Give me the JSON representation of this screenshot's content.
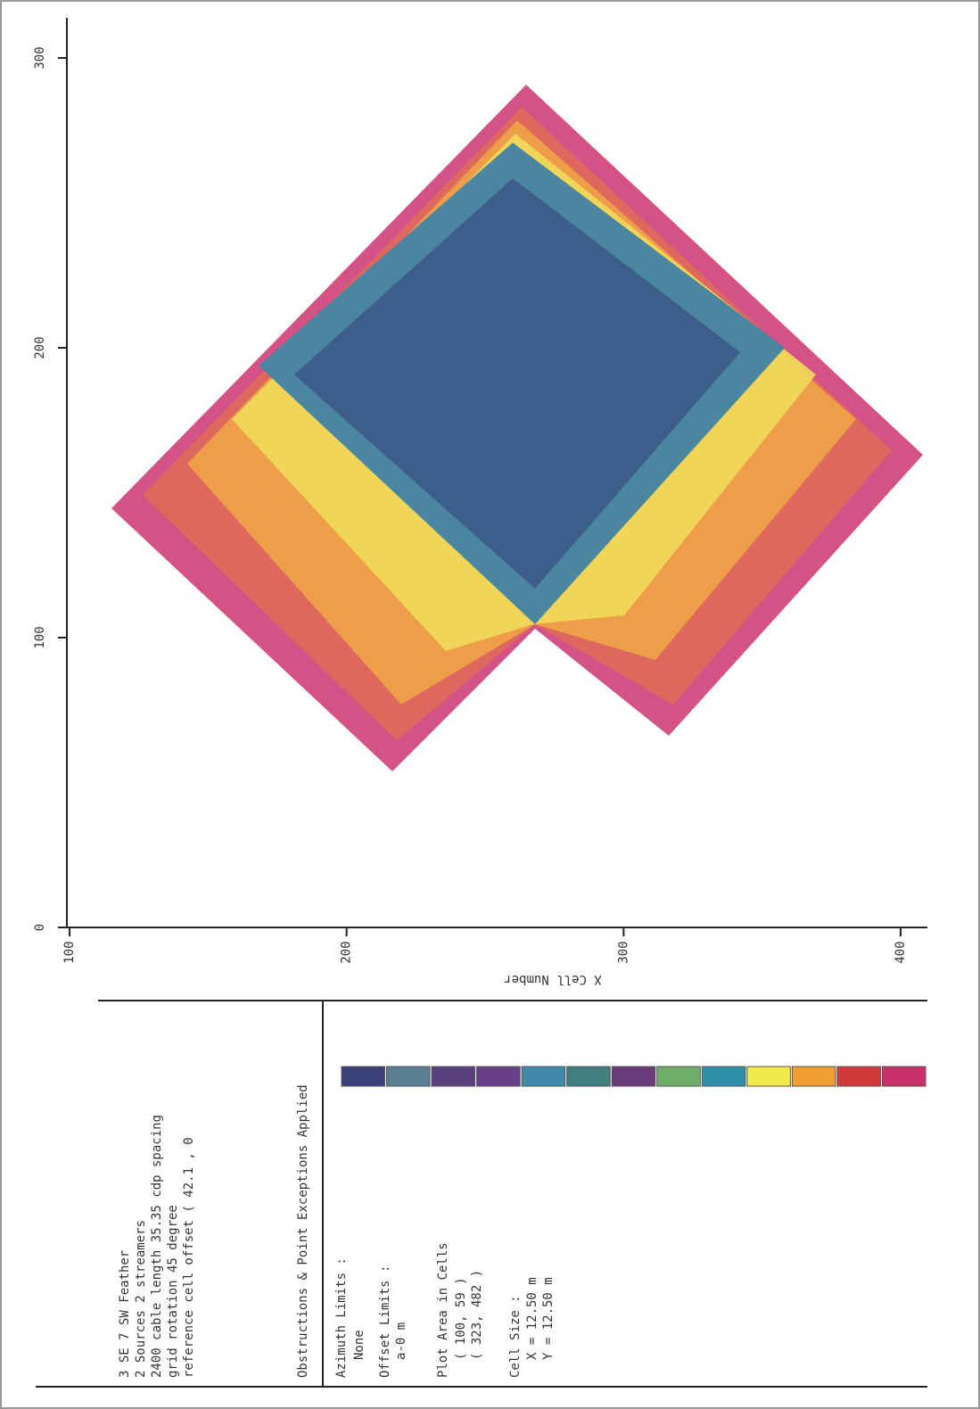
{
  "chart_data": {
    "type": "coverage",
    "x_label": "X Cell Number",
    "xlim": [
      100,
      400
    ],
    "xticks": [
      100,
      200,
      300,
      400
    ],
    "ylim": [
      0,
      300
    ],
    "yticks": [
      0,
      100,
      200,
      300
    ],
    "legend_colors": [
      "#3a3f7a",
      "#5a7f95",
      "#5b3f7f",
      "#6a3f8a",
      "#3f8aa8",
      "#3f7f7f",
      "#6b3a7a",
      "#6fae6a",
      "#2f8fa8",
      "#f2ea4a",
      "#f0a030",
      "#d23a3a",
      "#c8306a"
    ],
    "info": [
      "3 SE 7 SW Feather",
      "2 Sources 2 streamers",
      "2400 cable length 35.35 cdp spacing",
      "grid rotation 45 degree",
      "reference cell offset ( 42.1 , 0"
    ],
    "note": "Obstructions & Point Exceptions Applied",
    "params": [
      "Azimuth Limits :",
      "None",
      "Offset Limits :",
      "a-0 m",
      "Plot Area in Cells",
      "( 100, 59 )",
      "( 323, 482 )",
      "Cell Size :",
      "X = 12.50 m",
      "Y = 12.50 m"
    ]
  }
}
